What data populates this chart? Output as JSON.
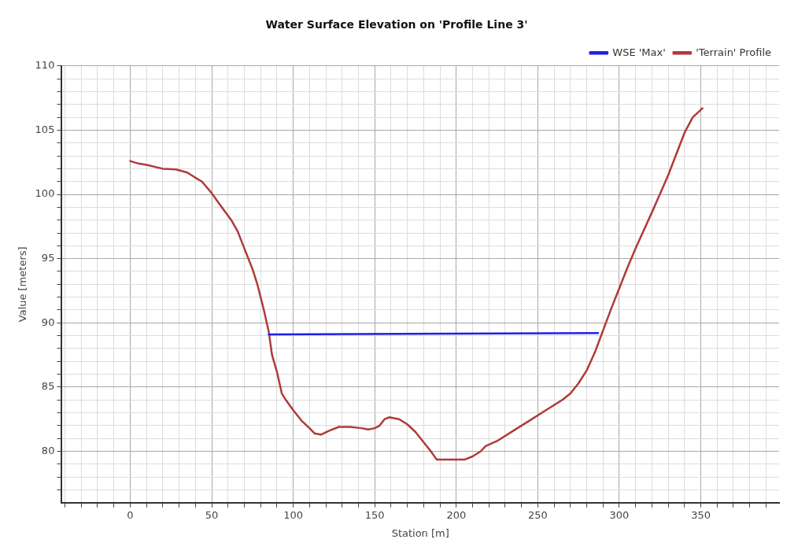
{
  "chart_data": {
    "type": "line",
    "title": "Water Surface Elevation on 'Profile Line 3'",
    "xlabel": "Station [m]",
    "ylabel": "Value [meters]",
    "xlim": [
      -42,
      398
    ],
    "ylim": [
      76,
      110
    ],
    "xticks": [
      {
        "value": -40,
        "label": null
      },
      {
        "value": -30,
        "label": null
      },
      {
        "value": -20,
        "label": null
      },
      {
        "value": -10,
        "label": null
      },
      0,
      {
        "value": 10,
        "label": null
      },
      {
        "value": 20,
        "label": null
      },
      {
        "value": 30,
        "label": null
      },
      {
        "value": 40,
        "label": null
      },
      50,
      {
        "value": 60,
        "label": null
      },
      {
        "value": 70,
        "label": null
      },
      {
        "value": 80,
        "label": null
      },
      {
        "value": 90,
        "label": null
      },
      100,
      {
        "value": 110,
        "label": null
      },
      {
        "value": 120,
        "label": null
      },
      {
        "value": 130,
        "label": null
      },
      {
        "value": 140,
        "label": null
      },
      150,
      {
        "value": 160,
        "label": null
      },
      {
        "value": 170,
        "label": null
      },
      {
        "value": 180,
        "label": null
      },
      {
        "value": 190,
        "label": null
      },
      200,
      {
        "value": 210,
        "label": null
      },
      {
        "value": 220,
        "label": null
      },
      {
        "value": 230,
        "label": null
      },
      {
        "value": 240,
        "label": null
      },
      250,
      {
        "value": 260,
        "label": null
      },
      {
        "value": 270,
        "label": null
      },
      {
        "value": 280,
        "label": null
      },
      {
        "value": 290,
        "label": null
      },
      300,
      {
        "value": 310,
        "label": null
      },
      {
        "value": 320,
        "label": null
      },
      {
        "value": 330,
        "label": null
      },
      {
        "value": 340,
        "label": null
      },
      350,
      {
        "value": 360,
        "label": null
      },
      {
        "value": 370,
        "label": null
      },
      {
        "value": 380,
        "label": null
      },
      {
        "value": 390,
        "label": null
      }
    ],
    "yticks": [
      {
        "value": 77,
        "label": null
      },
      {
        "value": 78,
        "label": null
      },
      {
        "value": 79,
        "label": null
      },
      80,
      {
        "value": 81,
        "label": null
      },
      {
        "value": 82,
        "label": null
      },
      {
        "value": 83,
        "label": null
      },
      {
        "value": 84,
        "label": null
      },
      85,
      {
        "value": 86,
        "label": null
      },
      {
        "value": 87,
        "label": null
      },
      {
        "value": 88,
        "label": null
      },
      {
        "value": 89,
        "label": null
      },
      90,
      {
        "value": 91,
        "label": null
      },
      {
        "value": 92,
        "label": null
      },
      {
        "value": 93,
        "label": null
      },
      {
        "value": 94,
        "label": null
      },
      95,
      {
        "value": 96,
        "label": null
      },
      {
        "value": 97,
        "label": null
      },
      {
        "value": 98,
        "label": null
      },
      {
        "value": 99,
        "label": null
      },
      100,
      {
        "value": 101,
        "label": null
      },
      {
        "value": 102,
        "label": null
      },
      {
        "value": 103,
        "label": null
      },
      {
        "value": 104,
        "label": null
      },
      105,
      {
        "value": 106,
        "label": null
      },
      {
        "value": 107,
        "label": null
      },
      {
        "value": 108,
        "label": null
      },
      {
        "value": 109,
        "label": null
      },
      110
    ],
    "grid": true,
    "legend": "top right",
    "marker": "none",
    "line_style": "solid",
    "series": [
      {
        "name": "WSE 'Max'",
        "color": "#1f1fe6",
        "x": [
          85,
          287
        ],
        "values": [
          89.1,
          89.2
        ]
      },
      {
        "name": "'Terrain' Profile",
        "color": "#b03a3a",
        "x": [
          0,
          5,
          10,
          20,
          28,
          35,
          40,
          44,
          50,
          55,
          62,
          66,
          70,
          75,
          78,
          82,
          85,
          87,
          90,
          93,
          96,
          100,
          105,
          110,
          113,
          117,
          122,
          128,
          135,
          142,
          146,
          150,
          153,
          156,
          159,
          165,
          170,
          175,
          180,
          185,
          188,
          195,
          205,
          210,
          215,
          218,
          225,
          235,
          245,
          255,
          265,
          270,
          275,
          280,
          285,
          290,
          295,
          300,
          305,
          310,
          320,
          330,
          340,
          345,
          351
        ],
        "values": [
          102.6,
          102.4,
          102.3,
          102.0,
          101.95,
          101.7,
          101.3,
          101.0,
          100.1,
          99.2,
          98.0,
          97.1,
          95.8,
          94.2,
          93.0,
          91.0,
          89.3,
          87.5,
          86.2,
          84.5,
          83.9,
          83.2,
          82.4,
          81.8,
          81.4,
          81.3,
          81.6,
          81.9,
          81.9,
          81.8,
          81.7,
          81.8,
          82.0,
          82.5,
          82.65,
          82.5,
          82.1,
          81.5,
          80.7,
          79.9,
          79.35,
          79.35,
          79.35,
          79.6,
          80.0,
          80.4,
          80.8,
          81.6,
          82.4,
          83.2,
          84.0,
          84.5,
          85.3,
          86.3,
          87.7,
          89.4,
          91.1,
          92.7,
          94.3,
          95.8,
          98.6,
          101.5,
          104.8,
          106.0,
          106.7
        ]
      }
    ]
  }
}
